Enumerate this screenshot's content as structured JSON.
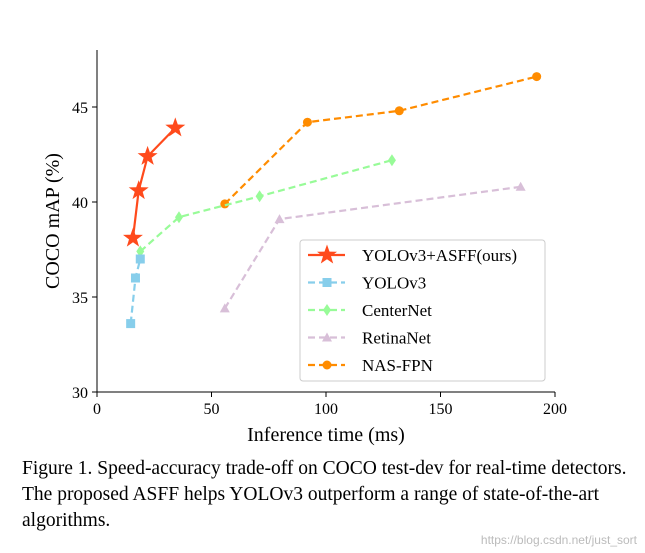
{
  "chart_data": {
    "type": "line",
    "xlabel": "Inference time (ms)",
    "ylabel": "COCO mAP (%)",
    "xlim": [
      0,
      200
    ],
    "ylim": [
      30,
      48
    ],
    "xticks": [
      0,
      50,
      100,
      150,
      200
    ],
    "yticks": [
      30,
      35,
      40,
      45
    ],
    "grid": false,
    "legend_position": "lower-right",
    "series": [
      {
        "name": "YOLOv3+ASFF(ours)",
        "color": "#FF4A1C",
        "marker": "star",
        "linestyle": "solid",
        "x": [
          15.7,
          18.2,
          22.1,
          34.2
        ],
        "y": [
          38.1,
          40.6,
          42.4,
          43.9
        ]
      },
      {
        "name": "YOLOv3",
        "color": "#87CEEB",
        "marker": "square",
        "linestyle": "dashed",
        "x": [
          14.7,
          16.8,
          18.9
        ],
        "y": [
          33.6,
          36.0,
          37.0
        ]
      },
      {
        "name": "CenterNet",
        "color": "#98FB98",
        "marker": "diamond",
        "linestyle": "dashed",
        "x": [
          18.9,
          35.8,
          71.0,
          128.8
        ],
        "y": [
          37.4,
          39.2,
          40.3,
          42.2
        ]
      },
      {
        "name": "RetinaNet",
        "color": "#D8BFD8",
        "marker": "triangle",
        "linestyle": "dashed",
        "x": [
          55.8,
          79.7,
          185.0
        ],
        "y": [
          34.4,
          39.1,
          40.8
        ]
      },
      {
        "name": "NAS-FPN",
        "color": "#FF8C00",
        "marker": "circle",
        "linestyle": "dashed",
        "x": [
          55.8,
          91.9,
          132.0,
          192.0
        ],
        "y": [
          39.9,
          44.2,
          44.8,
          46.6
        ]
      }
    ]
  },
  "caption": "Figure 1. Speed-accuracy trade-off on COCO test-dev for real-time detectors. The proposed ASFF helps YOLOv3 outperform a range of state-of-the-art algorithms.",
  "watermark": "https://blog.csdn.net/just_sort"
}
